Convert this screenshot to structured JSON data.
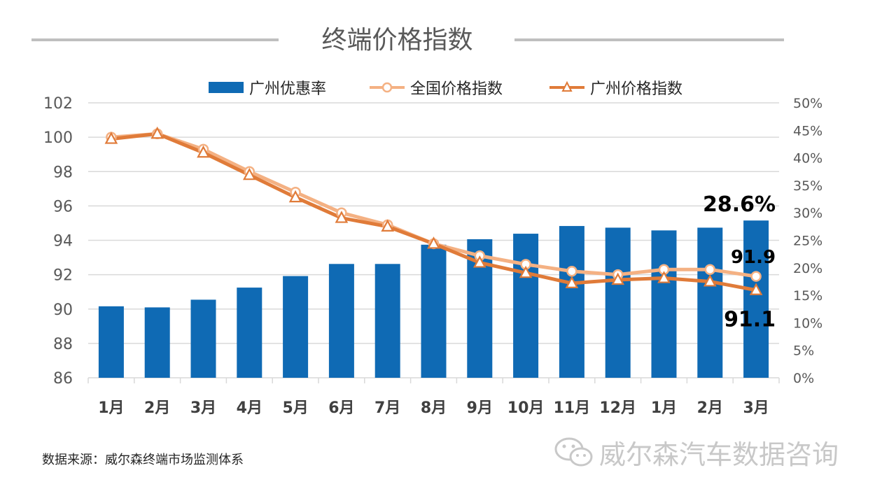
{
  "page_title": "终端价格指数",
  "source": "数据来源：威尔森终端市场监测体系",
  "watermark": "威尔森汽车数据咨询",
  "colors": {
    "bar": "#0f6ab4",
    "national_line": "#f4b183",
    "guangzhou_line": "#e07b39",
    "grid": "#d9d9d9",
    "title_line": "#bfbfbf"
  },
  "legend": [
    {
      "label": "广州优惠率",
      "kind": "bar"
    },
    {
      "label": "全国价格指数",
      "kind": "line-circle"
    },
    {
      "label": "广州价格指数",
      "kind": "line-triangle"
    }
  ],
  "chart_data": {
    "type": "bar+line",
    "categories": [
      "1月",
      "2月",
      "3月",
      "4月",
      "5月",
      "6月",
      "7月",
      "8月",
      "9月",
      "10月",
      "11月",
      "12月",
      "1月",
      "2月",
      "3月"
    ],
    "left_axis": {
      "range": [
        86,
        102
      ],
      "ticks": [
        "86",
        "88",
        "90",
        "92",
        "94",
        "96",
        "98",
        "100",
        "102"
      ]
    },
    "right_axis": {
      "range": [
        0,
        50
      ],
      "ticks": [
        "0%",
        "5%",
        "10%",
        "15%",
        "20%",
        "25%",
        "30%",
        "35%",
        "40%",
        "45%",
        "50%"
      ]
    },
    "series": [
      {
        "name": "广州优惠率",
        "type": "bar",
        "axis": "right",
        "values": [
          13.0,
          12.8,
          14.2,
          16.4,
          18.5,
          20.7,
          20.7,
          24.2,
          25.2,
          26.2,
          27.6,
          27.3,
          26.8,
          27.3,
          28.6
        ]
      },
      {
        "name": "全国价格指数",
        "type": "line",
        "marker": "circle",
        "axis": "left",
        "values": [
          100.0,
          100.2,
          99.3,
          98.0,
          96.8,
          95.6,
          94.9,
          93.8,
          93.1,
          92.6,
          92.2,
          92.0,
          92.3,
          92.3,
          91.9
        ]
      },
      {
        "name": "广州价格指数",
        "type": "line",
        "marker": "triangle",
        "axis": "left",
        "values": [
          99.9,
          100.2,
          99.1,
          97.8,
          96.5,
          95.3,
          94.8,
          93.8,
          92.7,
          92.1,
          91.5,
          91.7,
          91.8,
          91.6,
          91.1
        ]
      }
    ],
    "annotations": [
      {
        "text": "28.6%",
        "series": "广州优惠率",
        "index": 14
      },
      {
        "text": "91.9",
        "series": "全国价格指数",
        "index": 14
      },
      {
        "text": "91.1",
        "series": "广州价格指数",
        "index": 14
      }
    ]
  }
}
